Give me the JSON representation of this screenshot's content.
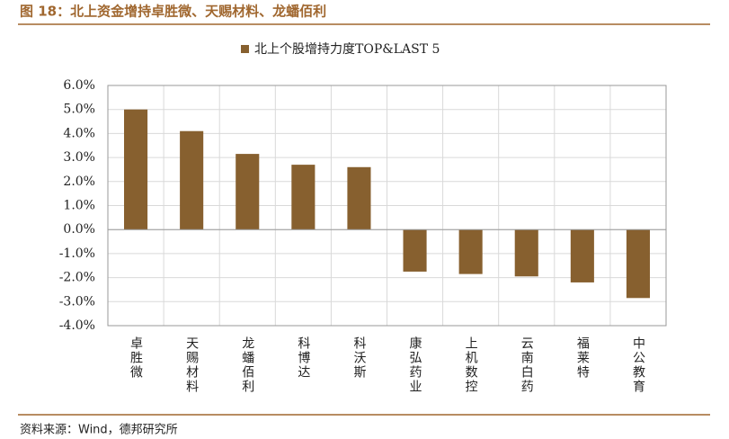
{
  "header": {
    "title": "图 18：北上资金增持卓胜微、天赐材料、龙蟠佰利"
  },
  "chart_data": {
    "type": "bar",
    "categories": [
      "卓胜微",
      "天赐材料",
      "龙蟠佰利",
      "科博达",
      "科沃斯",
      "康弘药业",
      "上机数控",
      "云南白药",
      "福莱特",
      "中公教育"
    ],
    "series": [
      {
        "name": "北上个股增持力度TOP&LAST 5",
        "color": "#87602f",
        "values": [
          5.0,
          4.1,
          3.15,
          2.7,
          2.6,
          -1.75,
          -1.85,
          -1.95,
          -2.2,
          -2.85
        ]
      }
    ],
    "ylim": [
      -4,
      6
    ],
    "yticks": [
      {
        "value": -4,
        "label": "-4.0%"
      },
      {
        "value": -3,
        "label": "-3.0%"
      },
      {
        "value": -2,
        "label": "-2.0%"
      },
      {
        "value": -1,
        "label": "-1.0%"
      },
      {
        "value": 0,
        "label": "0.0%"
      },
      {
        "value": 1,
        "label": "1.0%"
      },
      {
        "value": 2,
        "label": "2.0%"
      },
      {
        "value": 3,
        "label": "3.0%"
      },
      {
        "value": 4,
        "label": "4.0%"
      },
      {
        "value": 5,
        "label": "5.0%"
      },
      {
        "value": 6,
        "label": "6.0%"
      }
    ],
    "grid": true
  },
  "footer": {
    "source": "资料来源：Wind，德邦研究所"
  }
}
